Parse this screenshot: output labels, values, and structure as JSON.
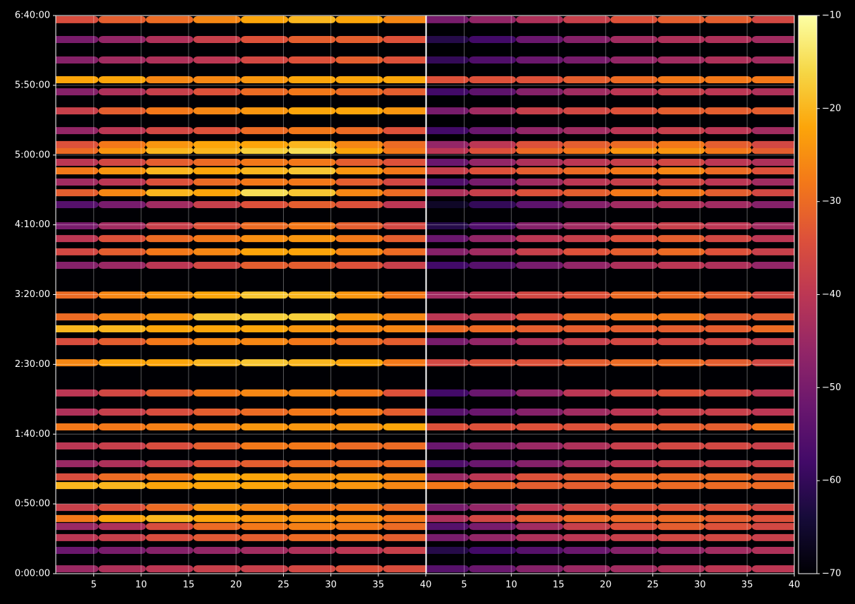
{
  "chart_data": {
    "type": "heatmap",
    "grid": true,
    "ylim": [
      0,
      24000
    ],
    "yticks": [
      {
        "value": 0,
        "label": "0:00:00"
      },
      {
        "value": 3000,
        "label": "0:50:00"
      },
      {
        "value": 6000,
        "label": "1:40:00"
      },
      {
        "value": 9000,
        "label": "2:30:00"
      },
      {
        "value": 12000,
        "label": "3:20:00"
      },
      {
        "value": 15000,
        "label": "4:10:00"
      },
      {
        "value": 18000,
        "label": "5:00:00"
      },
      {
        "value": 21000,
        "label": "5:50:00"
      },
      {
        "value": 24000,
        "label": "6:40:00"
      }
    ],
    "y": [
      210,
      1000,
      1550,
      2030,
      2370,
      2850,
      3790,
      4160,
      4730,
      5490,
      6310,
      6950,
      7770,
      9070,
      9980,
      10530,
      11040,
      11980,
      13260,
      13840,
      14410,
      14960,
      15870,
      16380,
      16840,
      17320,
      17690,
      18200,
      18450,
      19050,
      19900,
      20720,
      21240,
      22090,
      22970,
      23820
    ],
    "colorbar": {
      "colormap": "inferno",
      "lim": [
        -70,
        -10
      ],
      "ticks": [
        {
          "value": -70,
          "label": "−70"
        },
        {
          "value": -60,
          "label": "−60"
        },
        {
          "value": -50,
          "label": "−50"
        },
        {
          "value": -40,
          "label": "−40"
        },
        {
          "value": -30,
          "label": "−30"
        },
        {
          "value": -20,
          "label": "−20"
        },
        {
          "value": -10,
          "label": "−10"
        }
      ]
    },
    "panels": [
      {
        "xlim": [
          1,
          40
        ],
        "xticks": [
          5,
          10,
          15,
          20,
          25,
          30,
          35,
          40
        ],
        "x": [
          3,
          8,
          13,
          18,
          23,
          28,
          33,
          38
        ],
        "z": [
          [
            -45,
            -42,
            -40,
            -38,
            -38,
            -36,
            -34,
            -35
          ],
          [
            -52,
            -50,
            -48,
            -46,
            -44,
            -42,
            -40,
            -38
          ],
          [
            -40,
            -38,
            -35,
            -33,
            -32,
            -30,
            -30,
            -32
          ],
          [
            -45,
            -42,
            -35,
            -30,
            -28,
            -27,
            -28,
            -30
          ],
          [
            -28,
            -22,
            -20,
            -22,
            -24,
            -24,
            -25,
            -28
          ],
          [
            -38,
            -34,
            -30,
            -24,
            -26,
            -28,
            -28,
            -30
          ],
          [
            -20,
            -20,
            -22,
            -22,
            -22,
            -24,
            -24,
            -26
          ],
          [
            -35,
            -30,
            -28,
            -22,
            -22,
            -24,
            -24,
            -26
          ],
          [
            -45,
            -42,
            -38,
            -34,
            -32,
            -30,
            -30,
            -30
          ],
          [
            -40,
            -38,
            -35,
            -32,
            -28,
            -28,
            -30,
            -30
          ],
          [
            -28,
            -28,
            -27,
            -26,
            -24,
            -24,
            -24,
            -22
          ],
          [
            -42,
            -38,
            -35,
            -32,
            -30,
            -28,
            -28,
            -32
          ],
          [
            -40,
            -36,
            -32,
            -28,
            -26,
            -26,
            -28,
            -34
          ],
          [
            -26,
            -22,
            -22,
            -20,
            -18,
            -20,
            -22,
            -28
          ],
          [
            -35,
            -32,
            -28,
            -26,
            -26,
            -28,
            -30,
            -32
          ],
          [
            -20,
            -20,
            -22,
            -22,
            -22,
            -24,
            -26,
            -26
          ],
          [
            -30,
            -26,
            -24,
            -18,
            -17,
            -17,
            -24,
            -26
          ],
          [
            -30,
            -26,
            -24,
            -22,
            -18,
            -20,
            -24,
            -28
          ],
          [
            -48,
            -45,
            -40,
            -36,
            -32,
            -32,
            -34,
            -38
          ],
          [
            -36,
            -32,
            -28,
            -26,
            -22,
            -22,
            -26,
            -30
          ],
          [
            -40,
            -34,
            -30,
            -28,
            -25,
            -24,
            -28,
            -32
          ],
          [
            -50,
            -44,
            -38,
            -34,
            -30,
            -28,
            -32,
            -36
          ],
          [
            -55,
            -50,
            -44,
            -38,
            -34,
            -32,
            -34,
            -40
          ],
          [
            -32,
            -26,
            -20,
            -22,
            -15,
            -18,
            -26,
            -30
          ],
          [
            -44,
            -40,
            -34,
            -30,
            -28,
            -28,
            -32,
            -36
          ],
          [
            -28,
            -24,
            -20,
            -22,
            -20,
            -18,
            -24,
            -28
          ],
          [
            -40,
            -36,
            -32,
            -30,
            -28,
            -28,
            -32,
            -34
          ],
          [
            -30,
            -24,
            -20,
            -20,
            -17,
            -15,
            -22,
            -28
          ],
          [
            -34,
            -28,
            -24,
            -22,
            -22,
            -20,
            -26,
            -30
          ],
          [
            -46,
            -40,
            -36,
            -34,
            -30,
            -28,
            -30,
            -34
          ],
          [
            -38,
            -32,
            -28,
            -26,
            -24,
            -22,
            -22,
            -24
          ],
          [
            -48,
            -42,
            -38,
            -34,
            -30,
            -28,
            -30,
            -32
          ],
          [
            -22,
            -22,
            -26,
            -26,
            -24,
            -22,
            -22,
            -22
          ],
          [
            -48,
            -44,
            -42,
            -40,
            -36,
            -34,
            -32,
            -34
          ],
          [
            -50,
            -46,
            -42,
            -38,
            -34,
            -32,
            -32,
            -34
          ],
          [
            -35,
            -32,
            -30,
            -26,
            -22,
            -20,
            -22,
            -26
          ]
        ]
      },
      {
        "xlim": [
          1,
          40
        ],
        "xticks": [
          5,
          10,
          15,
          20,
          25,
          30,
          35,
          40
        ],
        "x": [
          3,
          8,
          13,
          18,
          23,
          28,
          33,
          38
        ],
        "z": [
          [
            -55,
            -52,
            -48,
            -45,
            -44,
            -42,
            -40,
            -40
          ],
          [
            -62,
            -58,
            -55,
            -52,
            -48,
            -46,
            -44,
            -42
          ],
          [
            -50,
            -46,
            -42,
            -40,
            -38,
            -36,
            -36,
            -38
          ],
          [
            -55,
            -50,
            -44,
            -38,
            -34,
            -32,
            -34,
            -36
          ],
          [
            -42,
            -36,
            -32,
            -30,
            -30,
            -30,
            -32,
            -34
          ],
          [
            -50,
            -46,
            -40,
            -36,
            -34,
            -34,
            -34,
            -36
          ],
          [
            -28,
            -30,
            -32,
            -32,
            -30,
            -30,
            -30,
            -30
          ],
          [
            -45,
            -40,
            -34,
            -32,
            -30,
            -30,
            -30,
            -32
          ],
          [
            -56,
            -52,
            -48,
            -44,
            -40,
            -38,
            -38,
            -38
          ],
          [
            -52,
            -48,
            -45,
            -42,
            -38,
            -36,
            -36,
            -38
          ],
          [
            -34,
            -34,
            -34,
            -34,
            -32,
            -32,
            -32,
            -28
          ],
          [
            -55,
            -52,
            -48,
            -44,
            -40,
            -38,
            -38,
            -40
          ],
          [
            -58,
            -52,
            -46,
            -40,
            -36,
            -34,
            -36,
            -40
          ],
          [
            -36,
            -34,
            -34,
            -32,
            -30,
            -30,
            -32,
            -36
          ],
          [
            -50,
            -46,
            -42,
            -38,
            -36,
            -36,
            -36,
            -38
          ],
          [
            -30,
            -30,
            -32,
            -32,
            -32,
            -32,
            -32,
            -30
          ],
          [
            -40,
            -38,
            -34,
            -30,
            -28,
            -28,
            -32,
            -32
          ],
          [
            -44,
            -40,
            -36,
            -34,
            -30,
            -30,
            -32,
            -36
          ],
          [
            -58,
            -55,
            -50,
            -46,
            -42,
            -40,
            -42,
            -46
          ],
          [
            -48,
            -44,
            -38,
            -34,
            -32,
            -30,
            -34,
            -38
          ],
          [
            -52,
            -46,
            -40,
            -38,
            -34,
            -32,
            -36,
            -40
          ],
          [
            -62,
            -56,
            -48,
            -44,
            -40,
            -38,
            -40,
            -44
          ],
          [
            -66,
            -60,
            -54,
            -48,
            -44,
            -42,
            -44,
            -48
          ],
          [
            -42,
            -38,
            -34,
            -32,
            -28,
            -28,
            -32,
            -36
          ],
          [
            -56,
            -50,
            -44,
            -40,
            -38,
            -36,
            -40,
            -44
          ],
          [
            -38,
            -34,
            -32,
            -30,
            -28,
            -26,
            -30,
            -34
          ],
          [
            -52,
            -46,
            -42,
            -40,
            -38,
            -36,
            -40,
            -42
          ],
          [
            -40,
            -34,
            -30,
            -28,
            -24,
            -24,
            -28,
            -32
          ],
          [
            -46,
            -40,
            -34,
            -32,
            -30,
            -28,
            -32,
            -36
          ],
          [
            -58,
            -52,
            -46,
            -44,
            -40,
            -38,
            -40,
            -44
          ],
          [
            -50,
            -44,
            -38,
            -36,
            -34,
            -32,
            -32,
            -32
          ],
          [
            -58,
            -54,
            -48,
            -44,
            -40,
            -38,
            -40,
            -42
          ],
          [
            -34,
            -34,
            -34,
            -32,
            -30,
            -28,
            -28,
            -28
          ],
          [
            -60,
            -56,
            -52,
            -50,
            -46,
            -44,
            -42,
            -44
          ],
          [
            -62,
            -58,
            -52,
            -48,
            -44,
            -42,
            -42,
            -44
          ],
          [
            -50,
            -46,
            -42,
            -38,
            -34,
            -32,
            -32,
            -36
          ]
        ]
      }
    ]
  }
}
